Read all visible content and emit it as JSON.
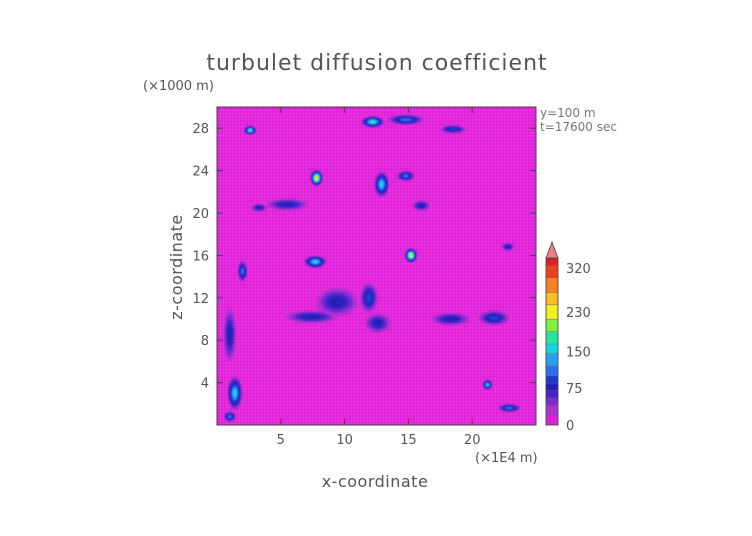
{
  "chart_data": {
    "type": "heatmap",
    "title": "turbulet diffusion coefficient",
    "xlabel": "x-coordinate",
    "ylabel": "z-coordinate",
    "x_unit": "(×1E4 m)",
    "y_unit": "(×1000 m)",
    "annotations": [
      "y=100 m",
      "t=17600 sec"
    ],
    "xlim": [
      0,
      25
    ],
    "ylim": [
      0,
      30
    ],
    "x_ticks": [
      5,
      10,
      15,
      20
    ],
    "y_ticks": [
      4,
      8,
      12,
      16,
      20,
      24,
      28
    ],
    "background_value": 15,
    "colorbar": {
      "ticks": [
        0,
        75,
        150,
        230,
        320
      ],
      "min": 0,
      "max": 340,
      "extend": "max",
      "levels": [
        {
          "from": 0,
          "to": 20,
          "color": "#e020d8"
        },
        {
          "from": 20,
          "to": 40,
          "color": "#b030d0"
        },
        {
          "from": 40,
          "to": 55,
          "color": "#7a2ad8"
        },
        {
          "from": 55,
          "to": 70,
          "color": "#4a24c8"
        },
        {
          "from": 70,
          "to": 85,
          "color": "#2420b8"
        },
        {
          "from": 85,
          "to": 100,
          "color": "#1a3ad8"
        },
        {
          "from": 100,
          "to": 120,
          "color": "#2c6cf0"
        },
        {
          "from": 120,
          "to": 145,
          "color": "#28a0f0"
        },
        {
          "from": 145,
          "to": 165,
          "color": "#10d8e0"
        },
        {
          "from": 165,
          "to": 190,
          "color": "#20e8a0"
        },
        {
          "from": 190,
          "to": 215,
          "color": "#80f040"
        },
        {
          "from": 215,
          "to": 245,
          "color": "#f0f020"
        },
        {
          "from": 245,
          "to": 270,
          "color": "#f8c020"
        },
        {
          "from": 270,
          "to": 300,
          "color": "#f88020"
        },
        {
          "from": 300,
          "to": 325,
          "color": "#f04020"
        },
        {
          "from": 325,
          "to": 340,
          "color": "#e02020"
        }
      ],
      "extend_color": "#f08080"
    },
    "features": [
      {
        "x": 2.6,
        "z": 27.8,
        "rx": 0.5,
        "rz": 0.45,
        "v": 170
      },
      {
        "x": 12.2,
        "z": 28.6,
        "rx": 0.9,
        "rz": 0.55,
        "v": 190
      },
      {
        "x": 14.8,
        "z": 28.8,
        "rx": 1.4,
        "rz": 0.5,
        "v": 120
      },
      {
        "x": 18.5,
        "z": 27.9,
        "rx": 1.0,
        "rz": 0.4,
        "v": 90
      },
      {
        "x": 7.8,
        "z": 23.3,
        "rx": 0.5,
        "rz": 0.8,
        "v": 260
      },
      {
        "x": 12.9,
        "z": 22.7,
        "rx": 0.6,
        "rz": 1.2,
        "v": 150
      },
      {
        "x": 14.8,
        "z": 23.5,
        "rx": 0.7,
        "rz": 0.5,
        "v": 110
      },
      {
        "x": 5.5,
        "z": 20.8,
        "rx": 1.6,
        "rz": 0.55,
        "v": 85
      },
      {
        "x": 3.3,
        "z": 20.5,
        "rx": 0.6,
        "rz": 0.4,
        "v": 80
      },
      {
        "x": 15.2,
        "z": 16.0,
        "rx": 0.5,
        "rz": 0.7,
        "v": 250
      },
      {
        "x": 7.7,
        "z": 15.4,
        "rx": 0.9,
        "rz": 0.6,
        "v": 150
      },
      {
        "x": 2.0,
        "z": 14.5,
        "rx": 0.4,
        "rz": 1.0,
        "v": 120
      },
      {
        "x": 11.9,
        "z": 12.0,
        "rx": 0.7,
        "rz": 1.4,
        "v": 100
      },
      {
        "x": 9.4,
        "z": 11.6,
        "rx": 1.6,
        "rz": 1.3,
        "v": 80
      },
      {
        "x": 7.4,
        "z": 10.2,
        "rx": 2.0,
        "rz": 0.6,
        "v": 80
      },
      {
        "x": 12.6,
        "z": 9.6,
        "rx": 1.0,
        "rz": 0.9,
        "v": 85
      },
      {
        "x": 18.3,
        "z": 10.0,
        "rx": 1.5,
        "rz": 0.6,
        "v": 85
      },
      {
        "x": 21.7,
        "z": 10.1,
        "rx": 1.2,
        "rz": 0.7,
        "v": 90
      },
      {
        "x": 1.0,
        "z": 8.5,
        "rx": 0.5,
        "rz": 2.5,
        "v": 85
      },
      {
        "x": 1.4,
        "z": 3.0,
        "rx": 0.6,
        "rz": 1.6,
        "v": 160
      },
      {
        "x": 21.2,
        "z": 3.8,
        "rx": 0.4,
        "rz": 0.5,
        "v": 150
      },
      {
        "x": 22.9,
        "z": 1.6,
        "rx": 0.9,
        "rz": 0.4,
        "v": 110
      },
      {
        "x": 1.0,
        "z": 0.8,
        "rx": 0.5,
        "rz": 0.5,
        "v": 110
      },
      {
        "x": 16.0,
        "z": 20.7,
        "rx": 0.7,
        "rz": 0.5,
        "v": 80
      },
      {
        "x": 22.8,
        "z": 16.8,
        "rx": 0.5,
        "rz": 0.4,
        "v": 80
      }
    ]
  }
}
